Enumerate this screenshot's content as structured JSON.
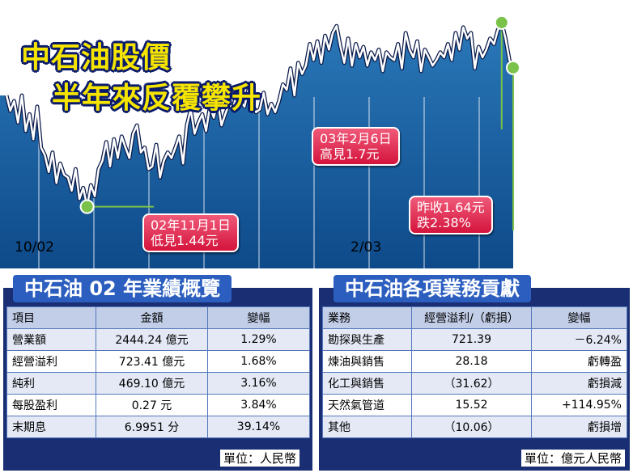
{
  "colors": {
    "bg_top": "#1e67a6",
    "bg_bottom": "#0b3a74",
    "line": "#ffffff",
    "callout": "#e0244a",
    "title_yellow": "#f5e400",
    "marker": "#7ac24a"
  },
  "title": {
    "line1": "中石油股價",
    "line2": "半年來反覆攀升"
  },
  "chart_data": {
    "type": "line",
    "title": "中石油股價 半年來反覆攀升",
    "x_tick_labels": [
      "10/02",
      "2/03"
    ],
    "ylim": [
      1.4,
      1.72
    ],
    "grid": true,
    "series": [
      {
        "values": [
          1.6,
          1.578,
          1.592,
          1.561,
          1.6,
          1.549,
          1.573,
          1.537,
          1.584,
          1.525,
          1.514,
          1.49,
          1.518,
          1.474,
          1.502,
          1.486,
          1.482,
          1.463,
          1.494,
          1.451,
          1.467,
          1.44,
          1.471,
          1.455,
          1.494,
          1.506,
          1.533,
          1.498,
          1.537,
          1.51,
          1.541,
          1.525,
          1.51,
          1.545,
          1.557,
          1.518,
          1.525,
          1.494,
          1.498,
          1.529,
          1.482,
          1.506,
          1.518,
          1.51,
          1.525,
          1.541,
          1.502,
          1.557,
          1.58,
          1.545,
          1.561,
          1.573,
          1.549,
          1.584,
          1.568,
          1.592,
          1.557,
          1.573,
          1.588,
          1.58,
          1.604,
          1.592,
          1.584,
          1.608,
          1.588,
          1.576,
          1.58,
          1.604,
          1.573,
          1.588,
          1.576,
          1.592,
          1.616,
          1.608,
          1.639,
          1.6,
          1.647,
          1.631,
          1.643,
          1.674,
          1.651,
          1.678,
          1.647,
          1.686,
          1.666,
          1.69,
          1.7,
          1.67,
          1.647,
          1.682,
          1.643,
          1.674,
          1.655,
          1.67,
          1.643,
          1.662,
          1.651,
          1.666,
          1.635,
          1.662,
          1.655,
          1.651,
          1.674,
          1.639,
          1.69,
          1.666,
          1.655,
          1.678,
          1.635,
          1.666,
          1.655,
          1.643,
          1.651,
          1.662,
          1.655,
          1.674,
          1.651,
          1.69,
          1.666,
          1.698,
          1.682,
          1.69,
          1.639,
          1.67,
          1.655,
          1.666,
          1.682,
          1.674,
          1.694,
          1.705,
          1.682,
          1.651,
          1.64
        ]
      }
    ],
    "annotations": [
      {
        "label": "02年11月1日\n低見1.44元",
        "date": "02年11月1日",
        "value": 1.44
      },
      {
        "label": "03年2月6日\n高見1.7元",
        "date": "03年2月6日",
        "value": 1.7
      },
      {
        "label": "昨收1.64元\n跌2.38%",
        "value": 1.64,
        "change_pct": -2.38
      }
    ]
  },
  "callouts": {
    "low_line1": "02年11月1日",
    "low_line2": "低見1.44元",
    "high_line1": "03年2月6日",
    "high_line2": "高見1.7元",
    "close_line1": "昨收1.64元",
    "close_line2": "跌2.38%"
  },
  "axis": {
    "tick_1": "10/02",
    "tick_2": "2/03"
  },
  "table1": {
    "title": "中石油 02 年業績概覽",
    "headers": [
      "項目",
      "金額",
      "變幅"
    ],
    "rows": [
      [
        "營業額",
        "2444.24 億元",
        "1.29%"
      ],
      [
        "經營溢利",
        "723.41 億元",
        "1.68%"
      ],
      [
        "純利",
        "469.10 億元",
        "3.16%"
      ],
      [
        "每股盈利",
        "0.27 元",
        "3.84%"
      ],
      [
        "末期息",
        "6.9951 分",
        "39.14%"
      ]
    ],
    "unit": "單位：人民幣"
  },
  "table2": {
    "title": "中石油各項業務貢獻",
    "headers": [
      "業務",
      "經營溢利/（虧損）",
      "變幅"
    ],
    "rows": [
      [
        "勘探與生產",
        "721.39",
        "－6.24%"
      ],
      [
        "煉油與銷售",
        "28.18",
        "虧轉盈"
      ],
      [
        "化工與銷售",
        "（31.62）",
        "虧損減"
      ],
      [
        "天然氣管道",
        "15.52",
        "+114.95%"
      ],
      [
        "其他",
        "（10.06）",
        "虧損增"
      ]
    ],
    "unit": "單位：億元人民幣"
  }
}
